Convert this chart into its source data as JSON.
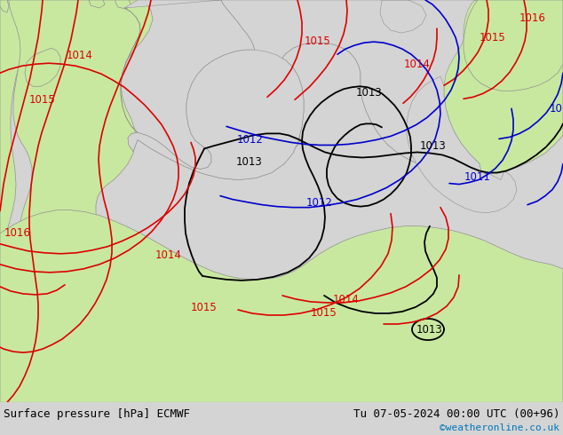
{
  "title_left": "Surface pressure [hPa] ECMWF",
  "title_right": "Tu 07-05-2024 00:00 UTC (00+96)",
  "copyright": "©weatheronline.co.uk",
  "bg_color": "#d4d4d4",
  "land_color": "#c8e8a0",
  "sea_color": "#d4d4d4",
  "coast_color": "#909090",
  "contour_black": "#000000",
  "contour_red": "#dd0000",
  "contour_blue": "#0000cc",
  "text_cyan": "#0077bb",
  "figsize": [
    6.34,
    4.9
  ],
  "dpi": 100
}
